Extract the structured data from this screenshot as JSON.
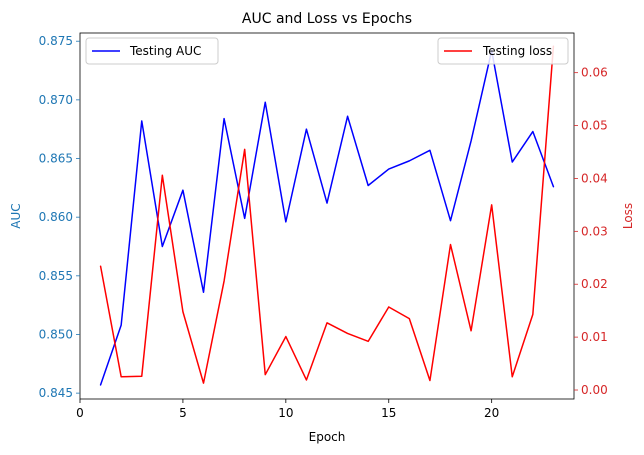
{
  "chart_data": {
    "type": "line",
    "title": "AUC and Loss vs Epochs",
    "xlabel": "Epoch",
    "ylabel_left": "AUC",
    "ylabel_right": "Loss",
    "x": [
      1,
      2,
      3,
      4,
      5,
      6,
      7,
      8,
      9,
      10,
      11,
      12,
      13,
      14,
      15,
      16,
      17,
      18,
      19,
      20,
      21,
      22,
      23
    ],
    "xlim": [
      0,
      24
    ],
    "xticks": [
      0,
      5,
      10,
      15,
      20
    ],
    "ylim_left": [
      0.8445,
      0.8757
    ],
    "yticks_left": [
      0.845,
      0.85,
      0.855,
      0.86,
      0.865,
      0.87,
      0.875
    ],
    "ylim_right": [
      -0.0017,
      0.0675
    ],
    "yticks_right": [
      0.0,
      0.01,
      0.02,
      0.03,
      0.04,
      0.05,
      0.06
    ],
    "grid": false,
    "series": [
      {
        "name": "Testing AUC",
        "axis": "left",
        "color": "#0000ff",
        "legend_position": "upper-left",
        "values": [
          0.8457,
          0.8508,
          0.8682,
          0.8575,
          0.8623,
          0.8536,
          0.8684,
          0.8599,
          0.8698,
          0.8596,
          0.8675,
          0.8612,
          0.8686,
          0.8627,
          0.8641,
          0.8648,
          0.8657,
          0.8597,
          0.8665,
          0.8742,
          0.8647,
          0.8673,
          0.8626
        ]
      },
      {
        "name": "Testing loss",
        "axis": "right",
        "color": "#ff0000",
        "legend_position": "upper-right",
        "values": [
          0.0234,
          0.0025,
          0.0026,
          0.0406,
          0.0148,
          0.0013,
          0.0206,
          0.0455,
          0.0029,
          0.0101,
          0.0019,
          0.0127,
          0.0107,
          0.0092,
          0.0157,
          0.0135,
          0.0018,
          0.0275,
          0.0112,
          0.035,
          0.0025,
          0.0143,
          0.065
        ]
      }
    ],
    "axis_colors": {
      "left": "#1f77b4",
      "right": "#d62728"
    }
  }
}
